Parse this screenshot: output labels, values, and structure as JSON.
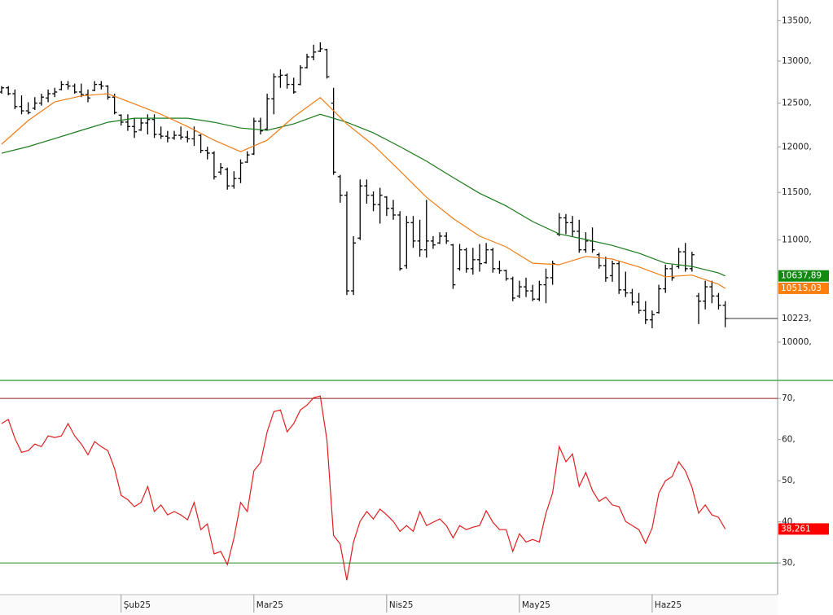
{
  "chart_data": [
    {
      "type": "ohlc",
      "log": true,
      "color": "#000000",
      "x": [
        0,
        1,
        2,
        3,
        4,
        5,
        6,
        7,
        8,
        9,
        10,
        11,
        12,
        13,
        14,
        15,
        16,
        17,
        18,
        19,
        20,
        21,
        22,
        23,
        24,
        25,
        26,
        27,
        28,
        29,
        30,
        31,
        32,
        33,
        34,
        35,
        36,
        37,
        38,
        39,
        40,
        41,
        42,
        43,
        44,
        45,
        46,
        47,
        48,
        49,
        50,
        51,
        52,
        53,
        54,
        55,
        56,
        57,
        58,
        59,
        60,
        61,
        62,
        63,
        64,
        65,
        66,
        67,
        68,
        69,
        70,
        71,
        72,
        73,
        74,
        75,
        76,
        77,
        78,
        79,
        80,
        81,
        82,
        83,
        84,
        85,
        86,
        87,
        88,
        89,
        90,
        91,
        92,
        93,
        94,
        95,
        96,
        97,
        98,
        99,
        100,
        101,
        102,
        103,
        104,
        105,
        106,
        107,
        108,
        109
      ],
      "open": [
        12630,
        12680,
        12610,
        12460,
        12410,
        12440,
        12500,
        12560,
        12610,
        12660,
        12720,
        12700,
        12630,
        12600,
        12650,
        12720,
        12700,
        12570,
        12360,
        12280,
        12230,
        12190,
        12270,
        12310,
        12140,
        12120,
        12100,
        12130,
        12110,
        12090,
        12130,
        11960,
        11930,
        11720,
        11750,
        11570,
        11650,
        11830,
        11920,
        12290,
        12200,
        12550,
        12810,
        12830,
        12720,
        12720,
        12920,
        13050,
        13120,
        13140,
        12500,
        11670,
        11470,
        10490,
        11020,
        11570,
        11470,
        11370,
        11450,
        11330,
        11260,
        10740,
        11180,
        10990,
        10900,
        10990,
        10970,
        11040,
        10950,
        10710,
        10900,
        10710,
        10800,
        10770,
        10900,
        10710,
        10690,
        10610,
        10440,
        10530,
        10490,
        10410,
        10550,
        10620,
        11060,
        11230,
        11180,
        11090,
        10900,
        10990,
        10850,
        10740,
        10640,
        10760,
        10500,
        10470,
        10380,
        10300,
        10210,
        10280,
        10510,
        10710,
        10730,
        10880,
        10710,
        10440,
        10390,
        10530,
        10440,
        10350
      ],
      "high": [
        12700,
        12700,
        12660,
        12590,
        12510,
        12570,
        12610,
        12660,
        12680,
        12760,
        12760,
        12730,
        12730,
        12660,
        12760,
        12760,
        12710,
        12610,
        12370,
        12370,
        12330,
        12330,
        12370,
        12370,
        12230,
        12180,
        12180,
        12230,
        12180,
        12230,
        12140,
        12000,
        11950,
        11820,
        11770,
        11730,
        11860,
        11950,
        12330,
        12330,
        12610,
        12850,
        12900,
        12850,
        12800,
        12950,
        13090,
        13200,
        13230,
        13150,
        12680,
        11690,
        11510,
        11040,
        11640,
        11640,
        11510,
        11550,
        11460,
        11420,
        11300,
        11250,
        11250,
        11210,
        11420,
        11040,
        11080,
        11080,
        10960,
        10960,
        10920,
        10920,
        10960,
        10970,
        10920,
        10790,
        10700,
        10630,
        10590,
        10620,
        10550,
        10590,
        10710,
        10790,
        11280,
        11270,
        11250,
        11210,
        11080,
        11130,
        10870,
        10830,
        10790,
        10790,
        10680,
        10510,
        10470,
        10390,
        10300,
        10550,
        10750,
        10750,
        10920,
        10970,
        10880,
        10470,
        10590,
        10590,
        10470,
        10390
      ],
      "low": [
        12610,
        12590,
        12430,
        12370,
        12370,
        12420,
        12470,
        12510,
        12570,
        12650,
        12660,
        12610,
        12570,
        12510,
        12640,
        12660,
        12540,
        12370,
        12240,
        12180,
        12100,
        12180,
        12140,
        12100,
        12090,
        12050,
        12080,
        12080,
        12050,
        12010,
        11930,
        11860,
        11640,
        11690,
        11530,
        11540,
        11600,
        11820,
        11910,
        12140,
        12190,
        12370,
        12680,
        12670,
        12610,
        12710,
        12910,
        13010,
        13110,
        12790,
        11690,
        11390,
        10450,
        10450,
        11000,
        11380,
        11300,
        11170,
        11250,
        11210,
        10690,
        10710,
        10920,
        10830,
        10820,
        10910,
        10960,
        10960,
        10510,
        10690,
        10670,
        10650,
        10680,
        10760,
        10670,
        10660,
        10590,
        10390,
        10420,
        10430,
        10390,
        10390,
        10370,
        10550,
        11040,
        11060,
        11040,
        10870,
        10870,
        10870,
        10710,
        10580,
        10580,
        10460,
        10430,
        10350,
        10270,
        10170,
        10130,
        10270,
        10470,
        10590,
        10710,
        10680,
        10680,
        10170,
        10310,
        10370,
        10310,
        10140
      ],
      "close": [
        12680,
        12610,
        12460,
        12410,
        12390,
        12500,
        12570,
        12610,
        12630,
        12720,
        12700,
        12630,
        12600,
        12560,
        12720,
        12700,
        12570,
        12390,
        12280,
        12230,
        12170,
        12270,
        12310,
        12140,
        12120,
        12100,
        12130,
        12110,
        12090,
        12180,
        11960,
        11930,
        11670,
        11770,
        11570,
        11650,
        11820,
        11910,
        12290,
        12180,
        12550,
        12810,
        12830,
        12720,
        12630,
        12920,
        13050,
        13110,
        13150,
        12810,
        11720,
        11470,
        10490,
        10970,
        11570,
        11470,
        11370,
        11470,
        11330,
        11260,
        10710,
        11180,
        10990,
        10900,
        10990,
        10950,
        11040,
        10990,
        10550,
        10900,
        10710,
        10800,
        10760,
        10900,
        10710,
        10690,
        10610,
        10420,
        10530,
        10490,
        10410,
        10550,
        10620,
        10760,
        11230,
        11180,
        11090,
        10900,
        10990,
        10900,
        10740,
        10620,
        10760,
        10500,
        10470,
        10380,
        10300,
        10210,
        10260,
        10510,
        10710,
        10620,
        10880,
        10710,
        10850,
        10390,
        10530,
        10440,
        10350,
        10223
      ],
      "last": {
        "value": 10223,
        "label": "10223,"
      },
      "series": [
        {
          "color": "#1a7a1a",
          "last_label": "10637,89",
          "x": [
            0,
            4,
            8,
            12,
            16,
            20,
            24,
            28,
            32,
            36,
            40,
            44,
            48,
            52,
            56,
            60,
            64,
            68,
            72,
            76,
            80,
            84,
            88,
            92,
            96,
            100,
            104,
            108,
            109
          ],
          "values": [
            11929,
            12002,
            12093,
            12186,
            12278,
            12325,
            12325,
            12325,
            12278,
            12212,
            12186,
            12260,
            12370,
            12278,
            12158,
            12002,
            11840,
            11661,
            11491,
            11356,
            11191,
            11063,
            11006,
            10945,
            10866,
            10765,
            10732,
            10667,
            10637.89
          ]
        },
        {
          "color": "#f07c14",
          "last_label": "10515,03",
          "x": [
            0,
            4,
            8,
            12,
            16,
            20,
            24,
            28,
            32,
            36,
            40,
            44,
            48,
            52,
            56,
            60,
            64,
            68,
            72,
            76,
            80,
            84,
            88,
            92,
            96,
            100,
            104,
            108,
            109
          ],
          "values": [
            12030,
            12298,
            12515,
            12585,
            12610,
            12490,
            12370,
            12230,
            12075,
            11946,
            12075,
            12340,
            12565,
            12260,
            12020,
            11733,
            11448,
            11225,
            11040,
            10930,
            10765,
            10750,
            10833,
            10807,
            10727,
            10629,
            10646,
            10556,
            10515.03
          ]
        }
      ],
      "xlim": [
        -0.25,
        116.9
      ],
      "ylim": [
        9649,
        13763
      ],
      "yticks": [
        {
          "value": 10000,
          "label": "10000,"
        },
        {
          "value": 11000,
          "label": "11000,"
        },
        {
          "value": 11500,
          "label": "11500,"
        },
        {
          "value": 12000,
          "label": "12000,"
        },
        {
          "value": 12500,
          "label": "12500,"
        },
        {
          "value": 13000,
          "label": "13000,"
        },
        {
          "value": 13500,
          "label": "13500,"
        }
      ]
    },
    {
      "type": "line",
      "x": [
        0,
        1,
        2,
        3,
        4,
        5,
        6,
        7,
        8,
        9,
        10,
        11,
        12,
        13,
        14,
        15,
        16,
        17,
        18,
        19,
        20,
        21,
        22,
        23,
        24,
        25,
        26,
        27,
        28,
        29,
        30,
        31,
        32,
        33,
        34,
        35,
        36,
        37,
        38,
        39,
        40,
        41,
        42,
        43,
        44,
        45,
        46,
        47,
        48,
        49,
        50,
        51,
        52,
        53,
        54,
        55,
        56,
        57,
        58,
        59,
        60,
        61,
        62,
        63,
        64,
        65,
        66,
        67,
        68,
        69,
        70,
        71,
        72,
        73,
        74,
        75,
        76,
        77,
        78,
        79,
        80,
        81,
        82,
        83,
        84,
        85,
        86,
        87,
        88,
        89,
        90,
        91,
        92,
        93,
        94,
        95,
        96,
        97,
        98,
        99,
        100,
        101,
        102,
        103,
        104,
        105,
        106,
        107,
        108,
        109
      ],
      "series": [
        {
          "color": "#e01e1e",
          "last_label": "38,261",
          "values": [
            63.9,
            64.9,
            60.3,
            56.9,
            57.3,
            58.9,
            58.3,
            60.9,
            60.5,
            60.9,
            63.9,
            60.9,
            58.9,
            56.3,
            59.5,
            58.3,
            57.3,
            53.0,
            46.4,
            45.4,
            43.7,
            44.7,
            48.6,
            42.5,
            44.1,
            41.7,
            42.5,
            41.7,
            40.5,
            44.7,
            38.1,
            39.5,
            32.2,
            32.8,
            29.6,
            36.1,
            44.7,
            42.5,
            52.4,
            54.4,
            61.9,
            66.8,
            67.2,
            61.9,
            63.9,
            67.2,
            68.4,
            70.2,
            70.6,
            59.9,
            36.7,
            34.6,
            25.8,
            35.1,
            40.1,
            42.5,
            40.7,
            43.1,
            41.7,
            40.1,
            37.7,
            39.1,
            37.7,
            42.5,
            39.1,
            39.9,
            40.7,
            39.1,
            36.1,
            39.1,
            38.1,
            38.7,
            39.1,
            42.7,
            39.9,
            38.1,
            38.1,
            32.8,
            37.1,
            35.1,
            35.7,
            35.1,
            42.1,
            47.0,
            58.3,
            54.6,
            56.5,
            48.6,
            52.0,
            47.6,
            45.0,
            46.0,
            44.1,
            43.7,
            40.1,
            39.1,
            38.1,
            34.8,
            38.5,
            47.0,
            50.0,
            51.0,
            54.6,
            52.4,
            48.4,
            42.1,
            44.1,
            41.7,
            41.1,
            38.261
          ]
        }
      ],
      "hlines": [
        {
          "value": 70,
          "color": "#8b1a1a"
        },
        {
          "value": 30,
          "color": "#2e8b2e"
        }
      ],
      "xlim": [
        -0.25,
        116.9
      ],
      "ylim": [
        22.3,
        73.8
      ],
      "yticks": [
        {
          "value": 30,
          "label": "30,"
        },
        {
          "value": 40,
          "label": "40,"
        },
        {
          "value": 50,
          "label": "50,"
        },
        {
          "value": 60,
          "label": "60,"
        },
        {
          "value": 70,
          "label": "70,"
        }
      ],
      "xticks": [
        {
          "value": 18,
          "label": "Şub25"
        },
        {
          "value": 38,
          "label": "Mar25"
        },
        {
          "value": 58,
          "label": "Nis25"
        },
        {
          "value": 78,
          "label": "May25"
        },
        {
          "value": 98,
          "label": "Haz25"
        }
      ]
    }
  ]
}
